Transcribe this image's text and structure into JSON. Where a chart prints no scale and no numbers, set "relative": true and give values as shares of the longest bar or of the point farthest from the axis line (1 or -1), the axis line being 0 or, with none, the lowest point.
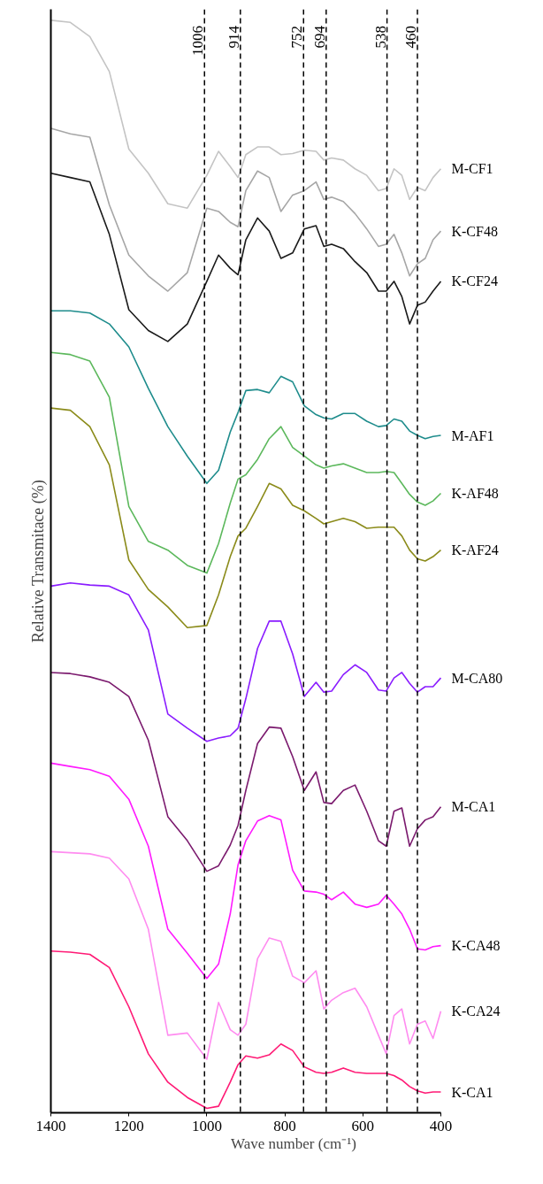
{
  "chart_data": {
    "type": "line",
    "relative": true,
    "xlabel": "Wave number (cm⁻¹)",
    "ylabel": "Relative Transmitace (%)",
    "xlim": [
      1400,
      400
    ],
    "xticks": [
      1400,
      1200,
      1000,
      800,
      600,
      400
    ],
    "tick_labels": "x",
    "line_style": "solid",
    "x": [
      1400,
      1350,
      1300,
      1250,
      1200,
      1150,
      1100,
      1050,
      1000,
      970,
      940,
      920,
      900,
      870,
      840,
      810,
      780,
      750,
      720,
      700,
      680,
      650,
      620,
      590,
      560,
      540,
      520,
      500,
      480,
      460,
      440,
      420,
      400
    ],
    "series": [
      {
        "name": "M-CF1",
        "color": "#c4c4c4",
        "values": [
          1.0,
          0.998,
          0.985,
          0.953,
          0.882,
          0.86,
          0.832,
          0.828,
          0.858,
          0.88,
          0.866,
          0.856,
          0.877,
          0.884,
          0.884,
          0.877,
          0.878,
          0.881,
          0.88,
          0.872,
          0.874,
          0.872,
          0.864,
          0.858,
          0.844,
          0.846,
          0.864,
          0.858,
          0.836,
          0.847,
          0.844,
          0.856,
          0.864
        ]
      },
      {
        "name": "K-CF48",
        "color": "#a6a6a6",
        "values": [
          0.901,
          0.896,
          0.893,
          0.831,
          0.785,
          0.766,
          0.752,
          0.769,
          0.828,
          0.825,
          0.815,
          0.811,
          0.844,
          0.862,
          0.856,
          0.825,
          0.84,
          0.844,
          0.852,
          0.836,
          0.838,
          0.834,
          0.823,
          0.809,
          0.793,
          0.795,
          0.804,
          0.787,
          0.766,
          0.777,
          0.782,
          0.799,
          0.807
        ]
      },
      {
        "name": "K-CF24",
        "color": "#1a1a1a",
        "values": [
          0.86,
          0.856,
          0.852,
          0.804,
          0.735,
          0.716,
          0.706,
          0.722,
          0.761,
          0.785,
          0.773,
          0.767,
          0.799,
          0.819,
          0.807,
          0.782,
          0.787,
          0.809,
          0.812,
          0.793,
          0.795,
          0.791,
          0.779,
          0.769,
          0.752,
          0.752,
          0.761,
          0.747,
          0.722,
          0.739,
          0.742,
          0.752,
          0.761
        ]
      },
      {
        "name": "M-AF1",
        "color": "#1e8c8c",
        "values": [
          0.734,
          0.734,
          0.732,
          0.722,
          0.701,
          0.663,
          0.628,
          0.601,
          0.576,
          0.588,
          0.623,
          0.641,
          0.661,
          0.662,
          0.659,
          0.674,
          0.669,
          0.647,
          0.639,
          0.636,
          0.635,
          0.64,
          0.64,
          0.633,
          0.628,
          0.629,
          0.635,
          0.633,
          0.624,
          0.62,
          0.617,
          0.619,
          0.62
        ]
      },
      {
        "name": "K-AF48",
        "color": "#5cb85c",
        "values": [
          0.696,
          0.694,
          0.688,
          0.655,
          0.555,
          0.523,
          0.515,
          0.501,
          0.494,
          0.521,
          0.558,
          0.58,
          0.584,
          0.598,
          0.617,
          0.628,
          0.609,
          0.601,
          0.593,
          0.59,
          0.592,
          0.594,
          0.59,
          0.586,
          0.586,
          0.587,
          0.586,
          0.576,
          0.566,
          0.559,
          0.556,
          0.56,
          0.567
        ]
      },
      {
        "name": "K-AF24",
        "color": "#8b8b1a",
        "values": [
          0.645,
          0.643,
          0.628,
          0.593,
          0.506,
          0.479,
          0.463,
          0.444,
          0.446,
          0.474,
          0.509,
          0.528,
          0.535,
          0.555,
          0.576,
          0.571,
          0.556,
          0.551,
          0.544,
          0.539,
          0.541,
          0.544,
          0.541,
          0.535,
          0.536,
          0.536,
          0.536,
          0.528,
          0.515,
          0.507,
          0.505,
          0.509,
          0.515
        ]
      },
      {
        "name": "M-CA80",
        "color": "#8a1cff",
        "values": [
          0.482,
          0.485,
          0.483,
          0.482,
          0.474,
          0.442,
          0.365,
          0.352,
          0.34,
          0.343,
          0.345,
          0.352,
          0.379,
          0.425,
          0.45,
          0.45,
          0.42,
          0.381,
          0.394,
          0.385,
          0.386,
          0.401,
          0.41,
          0.403,
          0.387,
          0.386,
          0.398,
          0.403,
          0.393,
          0.385,
          0.39,
          0.39,
          0.398
        ]
      },
      {
        "name": "M-CA1",
        "color": "#7b1a6e",
        "values": [
          0.403,
          0.402,
          0.399,
          0.394,
          0.381,
          0.341,
          0.271,
          0.249,
          0.221,
          0.226,
          0.245,
          0.263,
          0.295,
          0.338,
          0.353,
          0.352,
          0.326,
          0.295,
          0.312,
          0.284,
          0.283,
          0.295,
          0.3,
          0.276,
          0.249,
          0.244,
          0.276,
          0.279,
          0.244,
          0.26,
          0.268,
          0.271,
          0.28
        ]
      },
      {
        "name": "K-CA48",
        "color": "#ff1aff",
        "values": [
          0.32,
          0.317,
          0.314,
          0.308,
          0.287,
          0.244,
          0.168,
          0.146,
          0.123,
          0.136,
          0.182,
          0.227,
          0.249,
          0.267,
          0.272,
          0.268,
          0.222,
          0.203,
          0.202,
          0.2,
          0.195,
          0.202,
          0.191,
          0.188,
          0.191,
          0.199,
          0.191,
          0.182,
          0.168,
          0.15,
          0.149,
          0.152,
          0.153
        ]
      },
      {
        "name": "K-CA24",
        "color": "#ff8cf0",
        "values": [
          0.239,
          0.238,
          0.237,
          0.233,
          0.214,
          0.168,
          0.071,
          0.073,
          0.049,
          0.101,
          0.076,
          0.071,
          0.081,
          0.141,
          0.16,
          0.157,
          0.125,
          0.119,
          0.13,
          0.095,
          0.103,
          0.11,
          0.114,
          0.097,
          0.071,
          0.054,
          0.089,
          0.095,
          0.063,
          0.081,
          0.084,
          0.068,
          0.093
        ]
      },
      {
        "name": "K-CA1",
        "color": "#ff1a75",
        "values": [
          0.148,
          0.147,
          0.145,
          0.133,
          0.097,
          0.054,
          0.028,
          0.014,
          0.004,
          0.006,
          0.028,
          0.044,
          0.052,
          0.05,
          0.053,
          0.063,
          0.057,
          0.042,
          0.037,
          0.036,
          0.037,
          0.041,
          0.037,
          0.036,
          0.036,
          0.036,
          0.034,
          0.03,
          0.024,
          0.02,
          0.018,
          0.019,
          0.019
        ]
      }
    ],
    "ref_lines": [
      {
        "axis": "x",
        "value": 1006,
        "label": "1006",
        "color": "#000000",
        "line_style": "dashed"
      },
      {
        "axis": "x",
        "value": 914,
        "label": "914",
        "color": "#000000",
        "line_style": "dashed"
      },
      {
        "axis": "x",
        "value": 752,
        "label": "752",
        "color": "#000000",
        "line_style": "dashed"
      },
      {
        "axis": "x",
        "value": 694,
        "label": "694",
        "color": "#000000",
        "line_style": "dashed"
      },
      {
        "axis": "x",
        "value": 538,
        "label": "538",
        "color": "#000000",
        "line_style": "dashed"
      },
      {
        "axis": "x",
        "value": 460,
        "label": "460",
        "color": "#000000",
        "line_style": "dashed"
      }
    ]
  }
}
